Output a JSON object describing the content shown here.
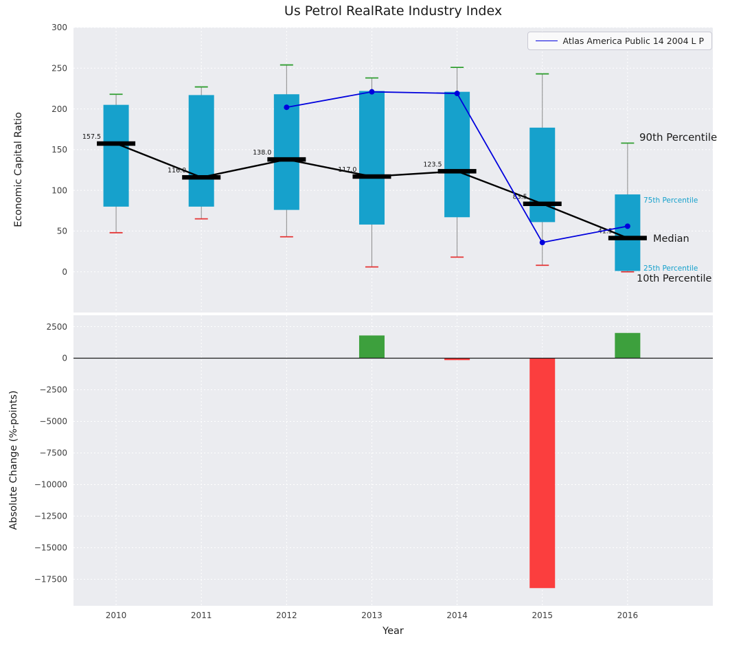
{
  "colors": {
    "box": "#16a1cc",
    "cap-top": "#2f9e2f",
    "cap-bottom": "#e53333",
    "bar-positive": "#3da03d",
    "bar-negative": "#fb3e3e",
    "series-line": "#0000dd",
    "median": "#000000",
    "whisker": "#8a8a8a",
    "panel-bg": "#ebecf0",
    "grid": "#ffffff",
    "text": "#1a1a1a",
    "tick": "#3d3d3d"
  },
  "annotations": {
    "p90": "90th Percentile",
    "p75": "75th Percentile",
    "median": "Median",
    "p25": "25th Percentile",
    "p10": "10th Percentile"
  },
  "chart_data": [
    {
      "type": "box-percentile",
      "title": "Us Petrol RealRate Industry Index",
      "xlabel": "",
      "ylabel": "Economic Capital Ratio",
      "xlim": [
        2009.5,
        2017.0
      ],
      "ylim": [
        -50,
        300
      ],
      "yticks": [
        0,
        50,
        100,
        150,
        200,
        250,
        300
      ],
      "ytick_labels": [
        "0",
        "50",
        "100",
        "150",
        "200",
        "250",
        "300"
      ],
      "years": [
        2010,
        2011,
        2012,
        2013,
        2014,
        2015,
        2016
      ],
      "xtick_labels": [
        "2010",
        "2011",
        "2012",
        "2013",
        "2014",
        "2015",
        "2016"
      ],
      "p90": [
        218,
        227,
        254,
        238,
        251,
        243,
        158
      ],
      "p75": [
        205,
        217,
        218,
        222,
        221,
        177,
        95
      ],
      "median": [
        157.5,
        116.0,
        138.0,
        117.0,
        123.5,
        83.5,
        41.5
      ],
      "median_labels": [
        "157.5",
        "116.0",
        "138.0",
        "117.0",
        "123.5",
        "83.5",
        "41.5"
      ],
      "p25": [
        80,
        80,
        76,
        58,
        67,
        61,
        1
      ],
      "p10": [
        48,
        65,
        43,
        6,
        18,
        8,
        0
      ],
      "series": [
        {
          "name": "Atlas America Public 14 2004 L P",
          "x": [
            2012,
            2013,
            2014,
            2015,
            2016
          ],
          "y": [
            202,
            221,
            219,
            36,
            56
          ]
        }
      ],
      "legend_position": "upper right",
      "grid": true
    },
    {
      "type": "bar",
      "title": "",
      "xlabel": "Year",
      "ylabel": "Absolute Change (%-points)",
      "xlim": [
        2009.5,
        2017.0
      ],
      "ylim": [
        -19600,
        3400
      ],
      "yticks": [
        2500,
        0,
        -2500,
        -5000,
        -7500,
        -10000,
        -12500,
        -15000,
        -17500
      ],
      "ytick_labels": [
        "2500",
        "0",
        "−2500",
        "−5000",
        "−7500",
        "−10000",
        "−12500",
        "−15000",
        "−17500"
      ],
      "years": [
        2010,
        2011,
        2012,
        2013,
        2014,
        2015,
        2016
      ],
      "values": [
        0,
        0,
        0,
        1800,
        -150,
        -18200,
        2000
      ],
      "grid": true
    }
  ]
}
